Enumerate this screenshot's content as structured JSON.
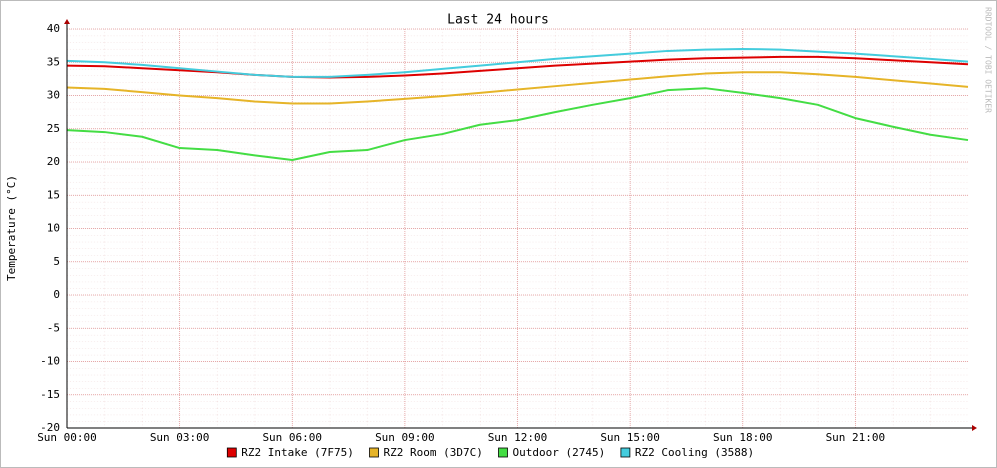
{
  "chart_data": {
    "type": "line",
    "title": "Last 24 hours",
    "y_label": "Temperature (°C)",
    "watermark": "RRDTOOL / TOBI OETIKER",
    "x": [
      0,
      1,
      2,
      3,
      4,
      5,
      6,
      7,
      8,
      9,
      10,
      11,
      12,
      13,
      14,
      15,
      16,
      17,
      18,
      19,
      20,
      21,
      22,
      23,
      24
    ],
    "xlim": [
      0,
      24
    ],
    "xticks": [
      {
        "value": 0,
        "label": "Sun 00:00"
      },
      {
        "value": 3,
        "label": "Sun 03:00"
      },
      {
        "value": 6,
        "label": "Sun 06:00"
      },
      {
        "value": 9,
        "label": "Sun 09:00"
      },
      {
        "value": 12,
        "label": "Sun 12:00"
      },
      {
        "value": 15,
        "label": "Sun 15:00"
      },
      {
        "value": 18,
        "label": "Sun 18:00"
      },
      {
        "value": 21,
        "label": "Sun 21:00"
      }
    ],
    "ylim": [
      -20,
      40
    ],
    "yticks": [
      -20,
      -15,
      -10,
      -5,
      0,
      5,
      10,
      15,
      20,
      25,
      30,
      35,
      40
    ],
    "grid": true,
    "legend": "bottom",
    "series": [
      {
        "name": "RZ2 Intake (7F75)",
        "color": "#dd0000",
        "values": [
          34.5,
          34.4,
          34.1,
          33.8,
          33.5,
          33.1,
          32.8,
          32.7,
          32.8,
          33.0,
          33.3,
          33.7,
          34.1,
          34.5,
          34.8,
          35.1,
          35.4,
          35.6,
          35.7,
          35.8,
          35.8,
          35.6,
          35.3,
          35.0,
          34.7
        ]
      },
      {
        "name": "RZ2 Room (3D7C)",
        "color": "#e6b428",
        "values": [
          31.2,
          31.0,
          30.5,
          30.0,
          29.6,
          29.1,
          28.8,
          28.8,
          29.1,
          29.5,
          29.9,
          30.4,
          30.9,
          31.4,
          31.9,
          32.4,
          32.9,
          33.3,
          33.5,
          33.5,
          33.2,
          32.8,
          32.3,
          31.8,
          31.3
        ]
      },
      {
        "name": "Outdoor (2745)",
        "color": "#44dd44",
        "values": [
          24.8,
          24.5,
          23.8,
          22.1,
          21.8,
          21.0,
          20.3,
          21.5,
          21.8,
          23.3,
          24.2,
          25.6,
          26.3,
          27.5,
          28.6,
          29.6,
          30.8,
          31.1,
          30.4,
          29.6,
          28.6,
          26.6,
          25.3,
          24.1,
          23.3
        ]
      },
      {
        "name": "RZ2 Cooling (3588)",
        "color": "#44ccdd",
        "values": [
          35.2,
          35.0,
          34.6,
          34.1,
          33.6,
          33.1,
          32.8,
          32.8,
          33.1,
          33.5,
          34.0,
          34.5,
          35.0,
          35.5,
          35.9,
          36.3,
          36.7,
          36.9,
          37.0,
          36.9,
          36.6,
          36.3,
          35.9,
          35.5,
          35.1
        ]
      }
    ]
  }
}
